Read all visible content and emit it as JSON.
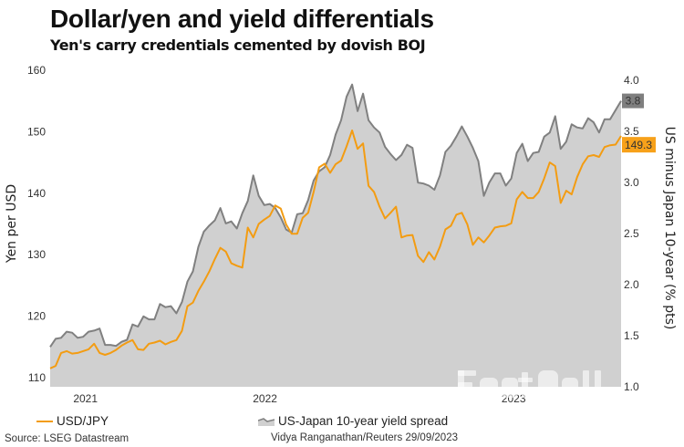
{
  "header": {
    "title": "Dollar/yen and yield differentials",
    "subtitle": "Yen's carry credentials cemented by dovish BOJ"
  },
  "footer": {
    "source": "Source: LSEG Datastream",
    "credit": "Vidya Ranganathan/Reuters 29/09/2023"
  },
  "watermark": "FastBull",
  "chart_data": {
    "type": "line",
    "title": "Dollar/yen and yield differentials",
    "subtitle": "Yen's carry credentials cemented by dovish BOJ",
    "grid": false,
    "legend_position": "bottom",
    "x_ticks": [
      {
        "label": "2021",
        "date": "2021-11-15"
      },
      {
        "label": "2022",
        "date": "2022-07-02"
      },
      {
        "label": "2023",
        "date": "2023-05-15"
      }
    ],
    "xlim": [
      "2021-10-01",
      "2023-09-29"
    ],
    "y_left": {
      "label": "Yen per USD",
      "ylim": [
        108.5,
        160
      ],
      "ticks": [
        110,
        120,
        130,
        140,
        150,
        160
      ]
    },
    "y_right": {
      "label": "US minus Japan 10-year (% pts)",
      "ylim": [
        1.0,
        4.1
      ],
      "ticks": [
        "1.0",
        "1.5",
        "2.0",
        "2.5",
        "3.0",
        "3.5",
        "4.0"
      ]
    },
    "dates": [
      "2021-10-01",
      "2021-10-08",
      "2021-10-15",
      "2021-10-22",
      "2021-10-29",
      "2021-11-05",
      "2021-11-12",
      "2021-11-19",
      "2021-11-26",
      "2021-12-03",
      "2021-12-10",
      "2021-12-17",
      "2021-12-24",
      "2021-12-31",
      "2022-01-07",
      "2022-01-14",
      "2022-01-21",
      "2022-01-28",
      "2022-02-04",
      "2022-02-11",
      "2022-02-18",
      "2022-02-25",
      "2022-03-04",
      "2022-03-11",
      "2022-03-18",
      "2022-03-25",
      "2022-04-01",
      "2022-04-08",
      "2022-04-15",
      "2022-04-22",
      "2022-04-29",
      "2022-05-06",
      "2022-05-13",
      "2022-05-20",
      "2022-05-27",
      "2022-06-03",
      "2022-06-10",
      "2022-06-17",
      "2022-06-24",
      "2022-07-01",
      "2022-07-08",
      "2022-07-15",
      "2022-07-22",
      "2022-07-29",
      "2022-08-05",
      "2022-08-12",
      "2022-08-19",
      "2022-08-26",
      "2022-09-02",
      "2022-09-09",
      "2022-09-16",
      "2022-09-23",
      "2022-09-30",
      "2022-10-07",
      "2022-10-14",
      "2022-10-21",
      "2022-10-28",
      "2022-11-04",
      "2022-11-11",
      "2022-11-18",
      "2022-11-25",
      "2022-12-02",
      "2022-12-09",
      "2022-12-16",
      "2022-12-23",
      "2022-12-30",
      "2023-01-06",
      "2023-01-13",
      "2023-01-20",
      "2023-01-27",
      "2023-02-03",
      "2023-02-10",
      "2023-02-17",
      "2023-02-24",
      "2023-03-03",
      "2023-03-10",
      "2023-03-17",
      "2023-03-24",
      "2023-03-31",
      "2023-04-07",
      "2023-04-14",
      "2023-04-21",
      "2023-04-28",
      "2023-05-05",
      "2023-05-12",
      "2023-05-19",
      "2023-05-26",
      "2023-06-02",
      "2023-06-09",
      "2023-06-16",
      "2023-06-23",
      "2023-06-30",
      "2023-07-07",
      "2023-07-14",
      "2023-07-21",
      "2023-07-28",
      "2023-08-04",
      "2023-08-11",
      "2023-08-18",
      "2023-08-25",
      "2023-09-01",
      "2023-09-08",
      "2023-09-15",
      "2023-09-22",
      "2023-09-29"
    ],
    "series": [
      {
        "name": "USD/JPY",
        "axis": "left",
        "style": "line",
        "color": "#f39c12",
        "last_value_label": "149.3",
        "values": [
          111.5,
          111.9,
          114.0,
          114.3,
          113.9,
          114.0,
          114.3,
          114.6,
          115.5,
          114.0,
          113.7,
          114.0,
          114.5,
          115.2,
          115.7,
          116.1,
          114.6,
          114.5,
          115.5,
          115.7,
          116.0,
          115.4,
          115.8,
          116.1,
          117.6,
          121.6,
          122.2,
          124.1,
          125.6,
          127.3,
          129.3,
          131.1,
          130.5,
          128.6,
          128.2,
          127.9,
          134.4,
          132.8,
          135.0,
          135.7,
          136.3,
          138.0,
          137.5,
          134.9,
          133.4,
          133.4,
          136.0,
          136.8,
          140.2,
          144.2,
          144.8,
          143.3,
          144.7,
          145.3,
          147.6,
          150.2,
          147.2,
          148.1,
          141.2,
          140.2,
          137.8,
          135.9,
          136.8,
          137.8,
          132.8,
          133.1,
          133.2,
          129.8,
          128.8,
          130.4,
          129.2,
          131.3,
          134.1,
          134.7,
          136.5,
          136.8,
          134.9,
          131.6,
          132.8,
          132.0,
          133.1,
          134.4,
          134.6,
          134.7,
          135.1,
          139.0,
          140.2,
          139.2,
          139.2,
          140.2,
          142.4,
          145.0,
          144.4,
          138.4,
          140.4,
          139.8,
          142.6,
          144.7,
          146.0,
          146.2,
          145.9,
          147.5,
          147.8,
          147.9,
          149.3
        ]
      },
      {
        "name": "US-Japan 10-year yield spread",
        "axis": "right",
        "style": "area",
        "color": "#808080",
        "fill": "#d0d0d0",
        "last_value_label": "3.8",
        "values": [
          1.39,
          1.47,
          1.48,
          1.54,
          1.53,
          1.48,
          1.49,
          1.54,
          1.55,
          1.57,
          1.41,
          1.41,
          1.4,
          1.44,
          1.46,
          1.61,
          1.59,
          1.69,
          1.66,
          1.66,
          1.81,
          1.78,
          1.79,
          1.72,
          1.83,
          2.03,
          2.13,
          2.37,
          2.52,
          2.58,
          2.63,
          2.75,
          2.6,
          2.62,
          2.55,
          2.7,
          2.82,
          3.07,
          2.87,
          2.78,
          2.79,
          2.75,
          2.66,
          2.54,
          2.51,
          2.69,
          2.7,
          2.83,
          3.02,
          3.11,
          3.15,
          3.27,
          3.47,
          3.61,
          3.84,
          3.96,
          3.7,
          3.87,
          3.61,
          3.54,
          3.49,
          3.35,
          3.28,
          3.22,
          3.27,
          3.37,
          3.34,
          3.0,
          2.99,
          2.97,
          2.93,
          3.07,
          3.3,
          3.36,
          3.45,
          3.55,
          3.45,
          3.34,
          3.21,
          2.87,
          3.0,
          3.09,
          3.09,
          2.97,
          3.04,
          3.29,
          3.38,
          3.21,
          3.29,
          3.3,
          3.45,
          3.49,
          3.65,
          3.33,
          3.4,
          3.57,
          3.54,
          3.53,
          3.63,
          3.59,
          3.49,
          3.62,
          3.62,
          3.71,
          3.8
        ]
      }
    ]
  }
}
